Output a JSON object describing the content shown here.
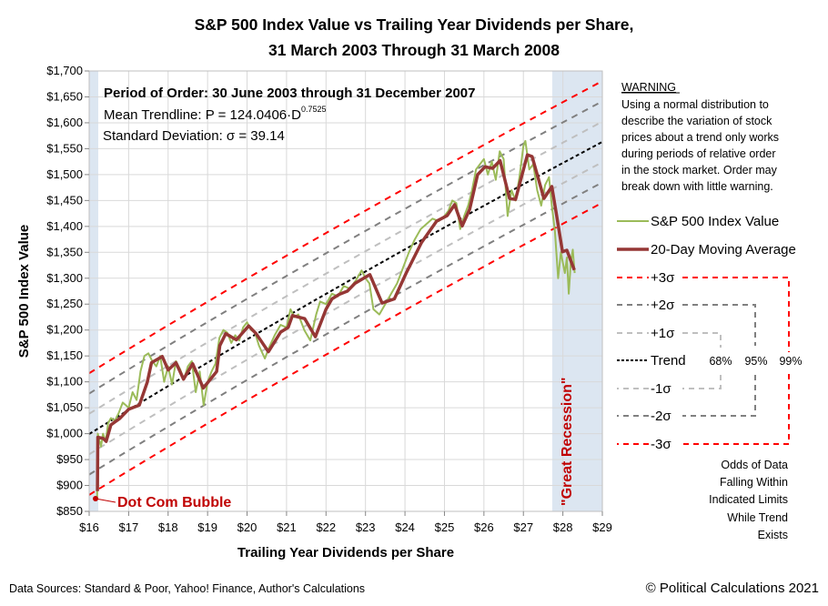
{
  "chart_data": {
    "type": "line",
    "title_line1": "S&P 500 Index Value vs Trailing Year Dividends per Share,",
    "title_line2": "31 March 2003 Through 31 March 2008",
    "xlabel": "Trailing Year Dividends per Share",
    "ylabel": "S&P 500 Index Value",
    "xlim": [
      16,
      29
    ],
    "ylim": [
      850,
      1700
    ],
    "x_ticks": [
      "$16",
      "$17",
      "$18",
      "$19",
      "$20",
      "$21",
      "$22",
      "$23",
      "$24",
      "$25",
      "$26",
      "$27",
      "$28",
      "$29"
    ],
    "y_ticks": [
      "$850",
      "$900",
      "$950",
      "$1,000",
      "$1,050",
      "$1,100",
      "$1,150",
      "$1,200",
      "$1,250",
      "$1,300",
      "$1,350",
      "$1,400",
      "$1,450",
      "$1,500",
      "$1,550",
      "$1,600",
      "$1,650",
      "$1,700"
    ],
    "grid": true,
    "trend": {
      "coefficient": 124.0406,
      "exponent": 0.7525,
      "sigma": 39.14
    },
    "shaded_regions": [
      {
        "x": [
          16,
          16.23
        ],
        "label": ""
      },
      {
        "x": [
          27.73,
          29
        ],
        "label": "\"Great Recession\""
      }
    ],
    "annotation": {
      "text": "Dot Com Bubble",
      "x": 16.15,
      "y": 875
    },
    "info": {
      "line1": "Period of Order: 30 June 2003 through 31 December 2007",
      "line2": "Mean Trendline: P = 124.0406·D",
      "line2_exponent": "0.7525",
      "line3": "Standard Deviation: σ = 39.14"
    },
    "warning": {
      "heading": "WARNING",
      "lines": [
        "Using a  normal distribution to",
        "describe the variation of stock",
        "prices about a trend only works",
        "during periods of relative order",
        "in the stock market.  Order may",
        "break down with little warning."
      ]
    },
    "series": [
      {
        "name": "S&P 500 Index Value",
        "color": "#9bbb59",
        "x": [
          16.2,
          16.22,
          16.25,
          16.3,
          16.35,
          16.42,
          16.48,
          16.55,
          16.65,
          16.75,
          16.85,
          17.0,
          17.1,
          17.2,
          17.3,
          17.4,
          17.5,
          17.6,
          17.7,
          17.8,
          17.9,
          18.0,
          18.1,
          18.2,
          18.3,
          18.4,
          18.5,
          18.6,
          18.7,
          18.8,
          18.9,
          19.0,
          19.1,
          19.2,
          19.3,
          19.4,
          19.5,
          19.6,
          19.7,
          19.8,
          19.9,
          20.0,
          20.1,
          20.2,
          20.3,
          20.45,
          20.55,
          20.7,
          20.85,
          21.0,
          21.1,
          21.2,
          21.3,
          21.45,
          21.6,
          21.75,
          21.85,
          22.0,
          22.15,
          22.3,
          22.45,
          22.6,
          22.75,
          22.9,
          23.0,
          23.1,
          23.2,
          23.35,
          23.5,
          23.65,
          23.8,
          23.95,
          24.1,
          24.25,
          24.4,
          24.55,
          24.7,
          24.85,
          25.0,
          25.1,
          25.2,
          25.3,
          25.4,
          25.5,
          25.6,
          25.7,
          25.8,
          25.9,
          26.0,
          26.1,
          26.2,
          26.3,
          26.4,
          26.5,
          26.6,
          26.7,
          26.8,
          26.9,
          27.0,
          27.05,
          27.15,
          27.25,
          27.35,
          27.45,
          27.55,
          27.65,
          27.72,
          27.8,
          27.88,
          27.95,
          28.0,
          28.05,
          28.1,
          28.15,
          28.2,
          28.25,
          28.3
        ],
        "values": [
          875,
          1000,
          990,
          975,
          1000,
          985,
          1020,
          1030,
          1025,
          1040,
          1060,
          1050,
          1080,
          1065,
          1120,
          1150,
          1155,
          1140,
          1130,
          1150,
          1100,
          1130,
          1095,
          1140,
          1125,
          1105,
          1130,
          1140,
          1080,
          1120,
          1055,
          1100,
          1120,
          1135,
          1185,
          1200,
          1195,
          1175,
          1190,
          1180,
          1205,
          1215,
          1200,
          1195,
          1170,
          1145,
          1165,
          1190,
          1210,
          1205,
          1240,
          1225,
          1230,
          1200,
          1180,
          1230,
          1255,
          1250,
          1270,
          1265,
          1285,
          1280,
          1295,
          1315,
          1300,
          1290,
          1240,
          1230,
          1250,
          1270,
          1290,
          1320,
          1350,
          1375,
          1395,
          1405,
          1415,
          1410,
          1420,
          1430,
          1450,
          1445,
          1395,
          1420,
          1440,
          1470,
          1510,
          1520,
          1530,
          1500,
          1525,
          1490,
          1545,
          1530,
          1420,
          1470,
          1450,
          1495,
          1555,
          1565,
          1510,
          1520,
          1470,
          1440,
          1480,
          1495,
          1440,
          1390,
          1300,
          1350,
          1330,
          1310,
          1340,
          1270,
          1330,
          1355,
          1310
        ]
      },
      {
        "name": "20-Day Moving Average",
        "color": "#953735",
        "x": [
          16.21,
          16.22,
          16.35,
          16.43,
          16.55,
          16.77,
          17.0,
          17.27,
          17.47,
          17.58,
          17.85,
          18.0,
          18.2,
          18.39,
          18.62,
          18.89,
          19.04,
          19.23,
          19.31,
          19.46,
          19.73,
          20.04,
          20.23,
          20.54,
          20.85,
          21.04,
          21.15,
          21.46,
          21.73,
          22.0,
          22.15,
          22.34,
          22.54,
          22.73,
          23.11,
          23.42,
          23.73,
          24.03,
          24.42,
          24.8,
          25.07,
          25.26,
          25.45,
          25.64,
          25.84,
          26.03,
          26.22,
          26.41,
          26.65,
          26.8,
          27.1,
          27.22,
          27.52,
          27.72,
          27.83,
          27.99,
          28.1,
          28.29
        ],
        "values": [
          889,
          993,
          991,
          985,
          1017,
          1029,
          1047,
          1055,
          1099,
          1137,
          1149,
          1123,
          1137,
          1105,
          1135,
          1088,
          1102,
          1120,
          1170,
          1193,
          1181,
          1208,
          1193,
          1158,
          1196,
          1205,
          1228,
          1222,
          1187,
          1240,
          1260,
          1269,
          1275,
          1290,
          1307,
          1252,
          1260,
          1310,
          1369,
          1410,
          1421,
          1442,
          1401,
          1433,
          1500,
          1515,
          1512,
          1527,
          1454,
          1452,
          1538,
          1535,
          1454,
          1477,
          1427,
          1351,
          1354,
          1316
        ]
      }
    ],
    "legend": {
      "index": "S&P 500 Index Value",
      "ma": "20-Day Moving Average",
      "p3": "+3σ",
      "p2": "+2σ",
      "p1": "+1σ",
      "trend": "Trend",
      "m1": "-1σ",
      "m2": "-2σ",
      "m3": "-3σ",
      "pct68": "68%",
      "pct95": "95%",
      "pct99": "99%",
      "odds": [
        "Odds of Data",
        "Falling Within",
        "Indicated Limits",
        "While Trend",
        "Exists"
      ]
    },
    "colors": {
      "sigma3": "#ff0000",
      "sigma2": "#808080",
      "sigma1": "#bfbfbf",
      "trend": "#000000",
      "shade": "#dce6f1"
    }
  },
  "footer": {
    "sources": "Data Sources: Standard & Poor, Yahoo! Finance, Author's Calculations",
    "copyright": "© Political Calculations 2021"
  }
}
